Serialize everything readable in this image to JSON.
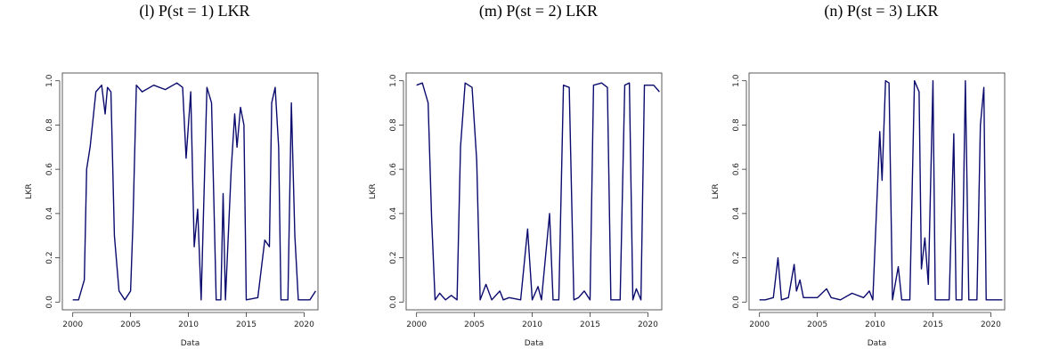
{
  "chart_data": [
    {
      "type": "line",
      "title": "(l) P(st = 1) LKR",
      "xlabel": "Data",
      "ylabel": "LKR",
      "color": "#0b0b6e",
      "xlim": [
        1999.1,
        2021.2
      ],
      "ylim": [
        -0.035,
        1.035
      ],
      "xticks": [
        2000,
        2005,
        2010,
        2015,
        2020
      ],
      "yticks": [
        {
          "value": 0,
          "label": "0.0"
        },
        0.2,
        0.4,
        0.6,
        0.8,
        {
          "value": 1,
          "label": "1.0"
        }
      ],
      "x": [
        2000,
        2000.5,
        2001,
        2001.2,
        2001.5,
        2002,
        2002.5,
        2002.8,
        2003,
        2003.3,
        2003.6,
        2004,
        2004.5,
        2005,
        2005.2,
        2005.5,
        2006,
        2007,
        2008,
        2009,
        2009.5,
        2009.8,
        2010.2,
        2010.5,
        2010.8,
        2011.1,
        2011.6,
        2012,
        2012.4,
        2012.8,
        2013,
        2013.2,
        2013.7,
        2014,
        2014.2,
        2014.5,
        2014.8,
        2015,
        2016,
        2016.6,
        2017,
        2017.2,
        2017.5,
        2017.8,
        2018,
        2018.6,
        2018.9,
        2019.2,
        2019.5,
        2020.5,
        2021
      ],
      "values": [
        0.01,
        0.01,
        0.1,
        0.6,
        0.7,
        0.95,
        0.98,
        0.85,
        0.97,
        0.95,
        0.3,
        0.05,
        0.01,
        0.05,
        0.35,
        0.98,
        0.95,
        0.98,
        0.96,
        0.99,
        0.97,
        0.65,
        0.95,
        0.25,
        0.42,
        0.01,
        0.97,
        0.9,
        0.01,
        0.01,
        0.49,
        0.01,
        0.6,
        0.85,
        0.7,
        0.88,
        0.8,
        0.01,
        0.02,
        0.28,
        0.25,
        0.9,
        0.97,
        0.7,
        0.01,
        0.01,
        0.9,
        0.3,
        0.01,
        0.01,
        0.05
      ]
    },
    {
      "type": "line",
      "title": "(m) P(st = 2) LKR",
      "xlabel": "Data",
      "ylabel": "LKR",
      "color": "#0b0b6e",
      "xlim": [
        1999.1,
        2021.2
      ],
      "ylim": [
        -0.035,
        1.035
      ],
      "xticks": [
        2000,
        2005,
        2010,
        2015,
        2020
      ],
      "yticks": [
        {
          "value": 0,
          "label": "0.0"
        },
        0.2,
        0.4,
        0.6,
        0.8,
        {
          "value": 1,
          "label": "1.0"
        }
      ],
      "x": [
        2000,
        2000.5,
        2001,
        2001.3,
        2001.6,
        2002,
        2002.5,
        2003,
        2003.5,
        2003.8,
        2004.2,
        2004.8,
        2005.2,
        2005.5,
        2006,
        2006.5,
        2007.2,
        2007.5,
        2008,
        2009,
        2009.6,
        2010,
        2010.5,
        2010.8,
        2011.5,
        2011.8,
        2012.3,
        2012.7,
        2013.2,
        2013.6,
        2014,
        2014.5,
        2015,
        2015.3,
        2016,
        2016.5,
        2016.8,
        2017.6,
        2018,
        2018.4,
        2018.7,
        2019,
        2019.4,
        2019.7,
        2020.5,
        2021
      ],
      "values": [
        0.98,
        0.99,
        0.9,
        0.38,
        0.01,
        0.04,
        0.01,
        0.03,
        0.01,
        0.7,
        0.99,
        0.97,
        0.64,
        0.01,
        0.08,
        0.01,
        0.05,
        0.01,
        0.02,
        0.01,
        0.33,
        0.01,
        0.07,
        0.01,
        0.4,
        0.01,
        0.01,
        0.98,
        0.97,
        0.01,
        0.02,
        0.05,
        0.01,
        0.98,
        0.99,
        0.97,
        0.01,
        0.01,
        0.98,
        0.99,
        0.01,
        0.06,
        0.01,
        0.98,
        0.98,
        0.95
      ]
    },
    {
      "type": "line",
      "title": "(n) P(st = 3) LKR",
      "xlabel": "Data",
      "ylabel": "LKR",
      "color": "#0b0b6e",
      "xlim": [
        1999.1,
        2021.2
      ],
      "ylim": [
        -0.035,
        1.035
      ],
      "xticks": [
        2000,
        2005,
        2010,
        2015,
        2020
      ],
      "yticks": [
        {
          "value": 0,
          "label": "0.0"
        },
        0.2,
        0.4,
        0.6,
        0.8,
        {
          "value": 1,
          "label": "1.0"
        }
      ],
      "x": [
        2000,
        2000.5,
        2001.2,
        2001.6,
        2001.9,
        2002.5,
        2003,
        2003.2,
        2003.5,
        2003.8,
        2005,
        2005.8,
        2006.2,
        2007,
        2008,
        2009,
        2009.5,
        2009.8,
        2010.4,
        2010.6,
        2010.9,
        2011.2,
        2011.5,
        2012,
        2012.3,
        2013,
        2013.4,
        2013.8,
        2014,
        2014.3,
        2014.6,
        2015,
        2015.2,
        2016.4,
        2016.8,
        2017,
        2017.5,
        2017.8,
        2018.1,
        2018.8,
        2019.1,
        2019.4,
        2019.6,
        2020.5,
        2021
      ],
      "values": [
        0.01,
        0.01,
        0.02,
        0.2,
        0.01,
        0.02,
        0.17,
        0.05,
        0.1,
        0.02,
        0.02,
        0.06,
        0.02,
        0.01,
        0.04,
        0.02,
        0.05,
        0.01,
        0.77,
        0.55,
        1.0,
        0.99,
        0.01,
        0.16,
        0.01,
        0.01,
        1.0,
        0.95,
        0.15,
        0.29,
        0.08,
        1.0,
        0.01,
        0.01,
        0.76,
        0.01,
        0.01,
        1.0,
        0.01,
        0.01,
        0.8,
        0.97,
        0.01,
        0.01,
        0.01
      ]
    }
  ]
}
